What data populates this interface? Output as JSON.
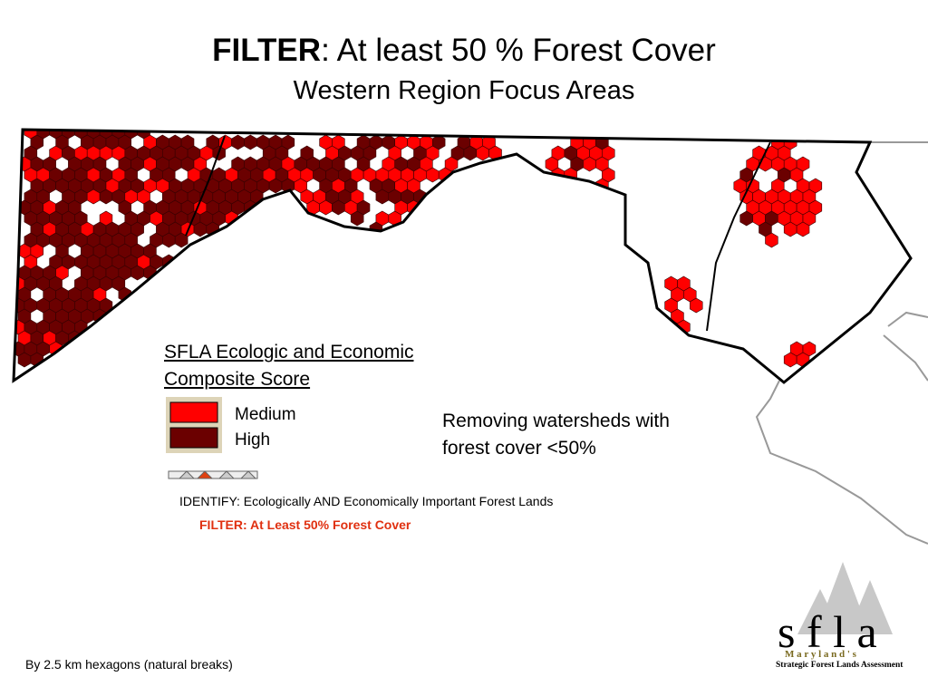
{
  "title_bold": "FILTER",
  "title_rest": ":  At least 50 % Forest Cover",
  "subtitle": "Western Region Focus Areas",
  "legend": {
    "title_lines": [
      "SFLA Ecologic and Economic",
      "Composite Score"
    ],
    "items": [
      {
        "label": "Medium",
        "color": "#ff0000"
      },
      {
        "label": "High",
        "color": "#6b0000"
      }
    ]
  },
  "note_lines": [
    "Removing watersheds with",
    "forest cover <50%"
  ],
  "identify": "IDENTIFY:  Ecologically AND Economically Important Forest Lands",
  "filter": "FILTER:  At Least 50% Forest Cover",
  "footer": "By 2.5 km hexagons (natural breaks)",
  "logo": {
    "letters": "s f l a",
    "state": "M a r y l a n d ' s",
    "name": "Strategic Forest Lands Assessment"
  }
}
